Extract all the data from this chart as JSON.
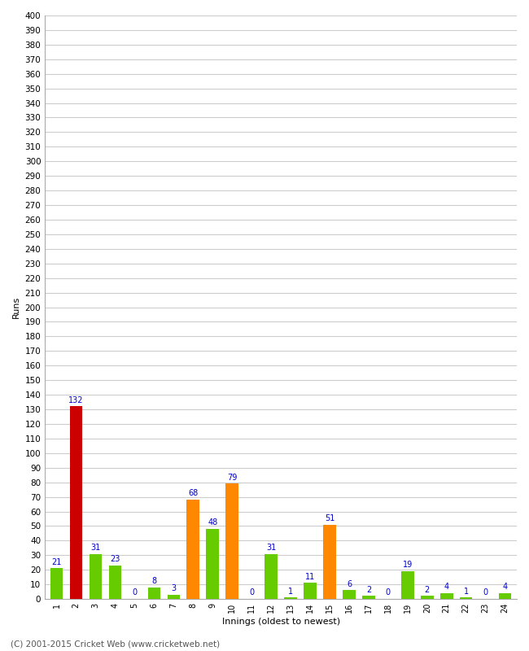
{
  "title": "",
  "xlabel": "Innings (oldest to newest)",
  "ylabel": "Runs",
  "categories": [
    1,
    2,
    3,
    4,
    5,
    6,
    7,
    8,
    9,
    10,
    11,
    12,
    13,
    14,
    15,
    16,
    17,
    18,
    19,
    20,
    21,
    22,
    23,
    24
  ],
  "values": [
    21,
    132,
    31,
    23,
    0,
    8,
    3,
    68,
    48,
    79,
    0,
    31,
    1,
    11,
    51,
    6,
    2,
    0,
    19,
    2,
    4,
    1,
    0,
    4
  ],
  "colors": [
    "#66cc00",
    "#cc0000",
    "#66cc00",
    "#66cc00",
    "#66cc00",
    "#66cc00",
    "#66cc00",
    "#ff8800",
    "#66cc00",
    "#ff8800",
    "#66cc00",
    "#66cc00",
    "#66cc00",
    "#66cc00",
    "#ff8800",
    "#66cc00",
    "#66cc00",
    "#66cc00",
    "#66cc00",
    "#66cc00",
    "#66cc00",
    "#66cc00",
    "#66cc00",
    "#66cc00"
  ],
  "ylim": [
    0,
    400
  ],
  "ytick_step": 10,
  "label_color": "#0000cc",
  "label_fontsize": 7,
  "background_color": "#ffffff",
  "grid_color": "#cccccc",
  "footer": "(C) 2001-2015 Cricket Web (www.cricketweb.net)",
  "xlabel_fontsize": 8,
  "ylabel_fontsize": 8,
  "xtick_fontsize": 7,
  "ytick_fontsize": 7.5
}
